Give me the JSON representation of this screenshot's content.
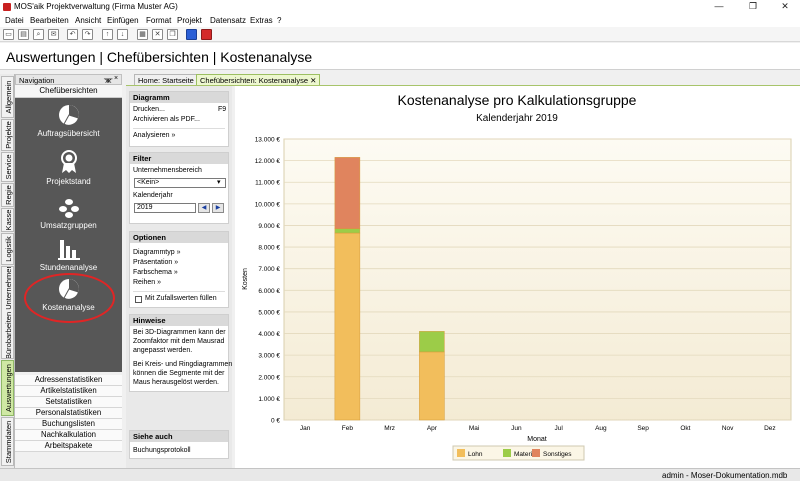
{
  "window": {
    "title": "MOS'aik Projektverwaltung (Firma Muster AG)",
    "minimize": "—",
    "restore": "❐",
    "close": "✕"
  },
  "menu": [
    "Datei",
    "Bearbeiten",
    "Ansicht",
    "Einfügen",
    "Format",
    "Projekt",
    "Datensatz",
    "Extras",
    "?"
  ],
  "page_title": "Auswertungen | Chefübersichten | Kostenanalyse",
  "navigation": {
    "title": "Navigation",
    "pin": "ᚘ",
    "close": "×",
    "section": "Chefübersichten",
    "items": [
      {
        "label": "Auftragsübersicht",
        "icon": "pie-icon"
      },
      {
        "label": "Projektstand",
        "icon": "medal-icon"
      },
      {
        "label": "Umsatzgruppen",
        "icon": "coins-icon"
      },
      {
        "label": "Stundenanalyse",
        "icon": "bar-chart-icon"
      },
      {
        "label": "Kostenanalyse",
        "icon": "pie-icon"
      }
    ],
    "list": [
      "Adressenstatistiken",
      "Artikelstatistiken",
      "Setstatistiken",
      "Personalstatistiken",
      "Buchungslisten",
      "Nachkalkulation",
      "Arbeitspakete"
    ]
  },
  "vertical_tabs": [
    "Allgemein",
    "Projekte",
    "Service",
    "Regie",
    "Kasse",
    "Logistik",
    "Bürobarbeiten Unternehmer",
    "Auswertungen",
    "Stammdaten"
  ],
  "tabs": [
    {
      "label": "Home: Startseite",
      "active": false
    },
    {
      "label": "Chefübersichten: Kostenanalyse",
      "active": true,
      "close": "✕"
    }
  ],
  "panel": {
    "diagramm": {
      "title": "Diagramm",
      "drucken": "Drucken...",
      "shortcut": "F9",
      "archivieren": "Archivieren als PDF...",
      "analysieren": "Analysieren »"
    },
    "filter": {
      "title": "Filter",
      "unternehmensbereich_label": "Unternehmensbereich",
      "unternehmensbereich_value": "<Kein>",
      "kalenderjahr_label": "Kalenderjahr",
      "kalenderjahr_value": "2019"
    },
    "optionen": {
      "title": "Optionen",
      "items": [
        "Diagrammtyp »",
        "Präsentation »",
        "Farbschema »",
        "Reihen »"
      ],
      "checkbox_label": "Mit Zufallswerten füllen"
    },
    "hinweise": {
      "title": "Hinweise",
      "text1": [
        "Bei 3D-Diagrammen kann der",
        "Zoomfaktor mit dem Mausrad",
        "angepasst werden."
      ],
      "text2": [
        "Bei Kreis- und Ringdiagrammen",
        "können die Segmente mit der",
        "Maus herausgelöst werden."
      ]
    },
    "siehe_auch": {
      "title": "Siehe auch",
      "link": "Buchungsprotokoll"
    }
  },
  "chart_data": {
    "type": "bar",
    "stacked": true,
    "title": "Kostenanalyse pro Kalkulationsgruppe",
    "subtitle": "Kalenderjahr 2019",
    "xlabel": "Monat",
    "ylabel": "Kosten",
    "ylim": [
      0,
      13000
    ],
    "yticks": [
      "0 €",
      "1.000 €",
      "2.000 €",
      "3.000 €",
      "4.000 €",
      "5.000 €",
      "6.000 €",
      "7.000 €",
      "8.000 €",
      "9.000 €",
      "10.000 €",
      "11.000 €",
      "12.000 €",
      "13.000 €"
    ],
    "categories": [
      "Jan",
      "Feb",
      "Mrz",
      "Apr",
      "Mai",
      "Jun",
      "Jul",
      "Aug",
      "Sep",
      "Okt",
      "Nov",
      "Dez"
    ],
    "series": [
      {
        "name": "Lohn",
        "color": "#f2be5c",
        "values": [
          0,
          8650,
          0,
          3150,
          0,
          0,
          0,
          0,
          0,
          0,
          0,
          0
        ]
      },
      {
        "name": "Material",
        "color": "#9ccc48",
        "values": [
          0,
          200,
          0,
          950,
          0,
          0,
          0,
          0,
          0,
          0,
          0,
          0
        ]
      },
      {
        "name": "Sonstiges",
        "color": "#e0845e",
        "values": [
          0,
          3300,
          0,
          0,
          0,
          0,
          0,
          0,
          0,
          0,
          0,
          0
        ]
      }
    ],
    "grid": true,
    "legend_position": "bottom"
  },
  "status": "admin - Moser-Dokumentation.mdb"
}
